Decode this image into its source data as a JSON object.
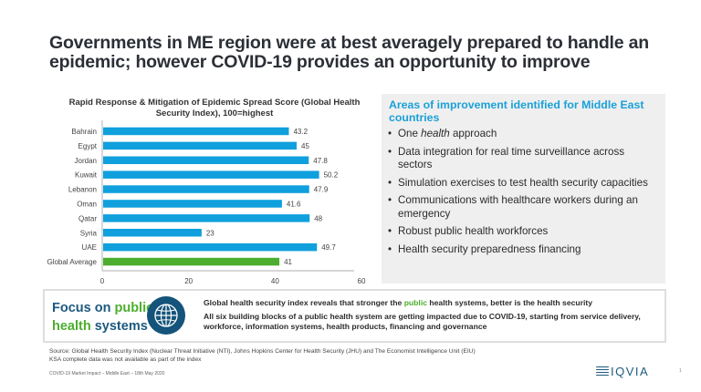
{
  "slide": {
    "title": "Governments in ME region were at best averagely prepared to handle an epidemic; however COVID-19 provides an opportunity to improve"
  },
  "chart_data": {
    "type": "bar",
    "orientation": "horizontal",
    "title": "Rapid Response & Mitigation of Epidemic Spread Score (Global Health Security Index), 100=highest",
    "categories": [
      "Bahrain",
      "Egypt",
      "Jordan",
      "Kuwait",
      "Lebanon",
      "Oman",
      "Qatar",
      "Syria",
      "UAE",
      "Global Average"
    ],
    "values": [
      43.2,
      45,
      47.8,
      50.2,
      47.9,
      41.6,
      48,
      23,
      49.7,
      41
    ],
    "value_labels": [
      "43.2",
      "45",
      "47.8",
      "50.2",
      "47.9",
      "41.6",
      "48",
      "23",
      "49.7",
      "41"
    ],
    "bar_colors": [
      "#0fa0dd",
      "#0fa0dd",
      "#0fa0dd",
      "#0fa0dd",
      "#0fa0dd",
      "#0fa0dd",
      "#0fa0dd",
      "#0fa0dd",
      "#0fa0dd",
      "#4cae2e"
    ],
    "xlabel": "",
    "ylabel": "",
    "xlim": [
      0,
      60
    ],
    "xticks": [
      0,
      20,
      40,
      60
    ],
    "grid": false,
    "legend": "none"
  },
  "panel": {
    "heading": "Areas of improvement identified for Middle East countries",
    "items": [
      {
        "pre": "One ",
        "italic": "health",
        "post": " approach"
      },
      {
        "pre": "Data integration for real time surveillance across sectors",
        "italic": "",
        "post": ""
      },
      {
        "pre": "Simulation exercises to test health security capacities",
        "italic": "",
        "post": ""
      },
      {
        "pre": "Communications with healthcare workers during an emergency",
        "italic": "",
        "post": ""
      },
      {
        "pre": "Robust public health workforces",
        "italic": "",
        "post": ""
      },
      {
        "pre": "Health security preparedness financing",
        "italic": "",
        "post": ""
      }
    ],
    "bullet": "•",
    "heading_color": "#1aa0d8"
  },
  "focus_box": {
    "label_part1": "Focus on ",
    "label_part2": "public",
    "label_part3": "health",
    "label_part4": " systems",
    "icon": "globe-icon",
    "line1_pre": "Global health security index reveals that stronger the ",
    "line1_highlight": "public",
    "line1_post": " health systems, better is the health security",
    "line2": "All six building blocks of a public health system are getting impacted due to COVID-19, starting from service delivery, workforce, information systems, health products, financing and governance"
  },
  "source": {
    "line1": "Source: Global Health Security Index (Nuclear Threat Initiative (NTI), Johns Hopkins Center for Health Security (JHU) and The Economist Intelligence Unit (EIU)",
    "line2": "KSA complete data was not available as part of the index"
  },
  "footer": {
    "text": "COVID-19 Market Impact – Middle East – 18th May 2020",
    "logo": "IQVIA",
    "page": "1"
  },
  "colors": {
    "title": "#2b2f36",
    "bar_primary": "#0fa0dd",
    "bar_global": "#4cae2e",
    "brand_blue": "#1d5a7f",
    "brand_green": "#4cae2e"
  }
}
